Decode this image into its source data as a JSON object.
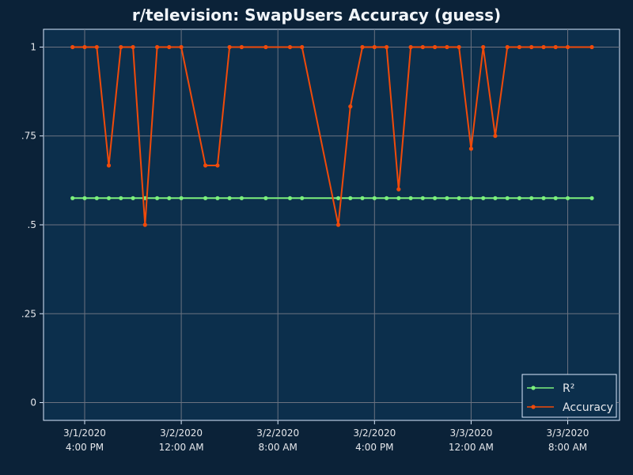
{
  "colors": {
    "page_background": "#0b2238",
    "plot_background": "#0c2f4c",
    "grid": "#6b7280",
    "axis_text": "#e5e7eb",
    "title_text": "#f1f5f9",
    "r2_series": "#7cf07c",
    "accuracy_series": "#f04a0a",
    "legend_border": "#dbeafe",
    "legend_text": "#e5e7eb"
  },
  "chart_data": {
    "type": "line",
    "title": "r/television: SwapUsers Accuracy (guess)",
    "xlabel": "",
    "ylabel": "",
    "x_axis_type": "datetime",
    "xlim": [
      "2020-03-01 12:00",
      "2020-03-03 11:00"
    ],
    "ylim": [
      -0.05,
      1.05
    ],
    "y_ticks": [
      0,
      0.25,
      0.5,
      0.75,
      1
    ],
    "y_tick_labels": [
      "0",
      ".25",
      ".5",
      ".75",
      "1"
    ],
    "x_ticks": [
      "2020-03-01 16:00",
      "2020-03-02 00:00",
      "2020-03-02 08:00",
      "2020-03-02 16:00",
      "2020-03-03 00:00",
      "2020-03-03 08:00"
    ],
    "x_tick_labels": [
      [
        "3/1/2020",
        "4:00 PM"
      ],
      [
        "3/2/2020",
        "12:00 AM"
      ],
      [
        "3/2/2020",
        "8:00 AM"
      ],
      [
        "3/2/2020",
        "4:00 PM"
      ],
      [
        "3/3/2020",
        "12:00 AM"
      ],
      [
        "3/3/2020",
        "8:00 AM"
      ]
    ],
    "grid": true,
    "legend_position": "bottom-right",
    "x": [
      "2020-03-01 15:00",
      "2020-03-01 16:00",
      "2020-03-01 17:00",
      "2020-03-01 18:00",
      "2020-03-01 19:00",
      "2020-03-01 20:00",
      "2020-03-01 21:00",
      "2020-03-01 22:00",
      "2020-03-01 23:00",
      "2020-03-02 00:00",
      "2020-03-02 02:00",
      "2020-03-02 03:00",
      "2020-03-02 04:00",
      "2020-03-02 05:00",
      "2020-03-02 07:00",
      "2020-03-02 09:00",
      "2020-03-02 10:00",
      "2020-03-02 13:00",
      "2020-03-02 14:00",
      "2020-03-02 15:00",
      "2020-03-02 16:00",
      "2020-03-02 17:00",
      "2020-03-02 18:00",
      "2020-03-02 19:00",
      "2020-03-02 20:00",
      "2020-03-02 21:00",
      "2020-03-02 22:00",
      "2020-03-02 23:00",
      "2020-03-03 00:00",
      "2020-03-03 01:00",
      "2020-03-03 02:00",
      "2020-03-03 03:00",
      "2020-03-03 04:00",
      "2020-03-03 05:00",
      "2020-03-03 06:00",
      "2020-03-03 07:00",
      "2020-03-03 08:00",
      "2020-03-03 10:00"
    ],
    "series": [
      {
        "name": "R²",
        "color": "#7cf07c",
        "values": [
          0.575,
          0.575,
          0.575,
          0.575,
          0.575,
          0.575,
          0.575,
          0.575,
          0.575,
          0.575,
          0.575,
          0.575,
          0.575,
          0.575,
          0.575,
          0.575,
          0.575,
          0.575,
          0.575,
          0.575,
          0.575,
          0.575,
          0.575,
          0.575,
          0.575,
          0.575,
          0.575,
          0.575,
          0.575,
          0.575,
          0.575,
          0.575,
          0.575,
          0.575,
          0.575,
          0.575,
          0.575,
          0.575
        ]
      },
      {
        "name": "Accuracy",
        "color": "#f04a0a",
        "values": [
          1,
          1,
          1,
          0.667,
          1,
          1,
          0.5,
          1,
          1,
          1,
          0.667,
          0.667,
          1,
          1,
          1,
          1,
          1,
          0.5,
          0.833,
          1,
          1,
          1,
          0.6,
          1,
          1,
          1,
          1,
          1,
          0.714,
          1,
          0.75,
          1,
          1,
          1,
          1,
          1,
          1,
          1
        ]
      }
    ]
  }
}
